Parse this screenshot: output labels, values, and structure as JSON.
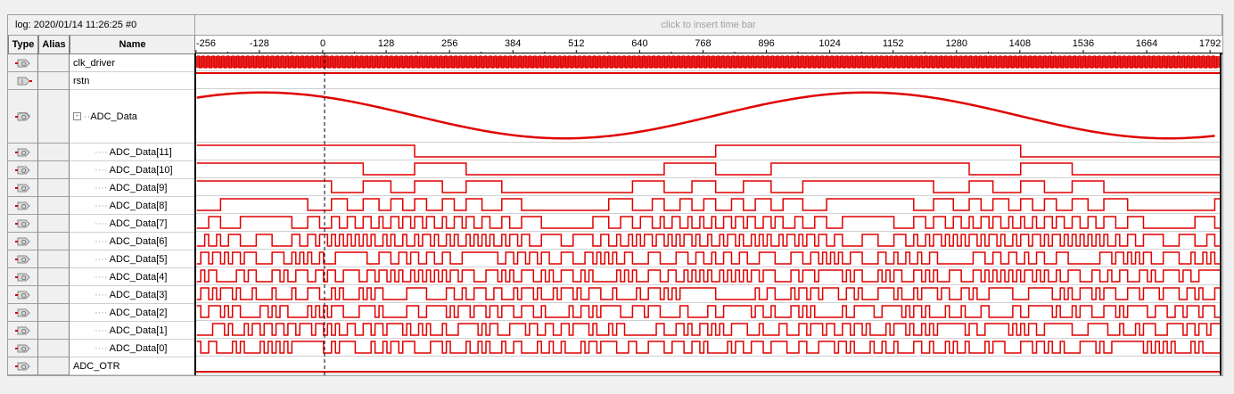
{
  "header": {
    "log": "log: 2020/01/14 11:26:25  #0",
    "time_bar_hint": "click to insert time bar"
  },
  "columns": {
    "type": "Type",
    "alias": "Alias",
    "name": "Name"
  },
  "ruler": {
    "ticks": [
      "-256",
      "-128",
      "0",
      "128",
      "256",
      "384",
      "512",
      "640",
      "768",
      "896",
      "1024",
      "1152",
      "1280",
      "1408",
      "1536",
      "1664",
      "1792"
    ],
    "cursor_time": 0
  },
  "colors": {
    "wave": "#e00000",
    "grid": "#d0d0d0"
  },
  "signals": [
    {
      "name": "clk_driver",
      "type": "output",
      "kind": "clock"
    },
    {
      "name": "rstn",
      "type": "input",
      "kind": "high"
    },
    {
      "name": "ADC_Data",
      "type": "output-bus",
      "kind": "analog",
      "expanded": true
    },
    {
      "name": "ADC_Data[11]",
      "type": "output",
      "kind": "bit",
      "bit": 11
    },
    {
      "name": "ADC_Data[10]",
      "type": "output",
      "kind": "bit",
      "bit": 10
    },
    {
      "name": "ADC_Data[9]",
      "type": "output",
      "kind": "bit",
      "bit": 9
    },
    {
      "name": "ADC_Data[8]",
      "type": "output",
      "kind": "bit",
      "bit": 8
    },
    {
      "name": "ADC_Data[7]",
      "type": "output",
      "kind": "bit",
      "bit": 7
    },
    {
      "name": "ADC_Data[6]",
      "type": "output",
      "kind": "bit",
      "bit": 6
    },
    {
      "name": "ADC_Data[5]",
      "type": "output",
      "kind": "bit",
      "bit": 5
    },
    {
      "name": "ADC_Data[4]",
      "type": "output",
      "kind": "bit",
      "bit": 4
    },
    {
      "name": "ADC_Data[3]",
      "type": "output",
      "kind": "bit",
      "bit": 3
    },
    {
      "name": "ADC_Data[2]",
      "type": "output",
      "kind": "bit",
      "bit": 2
    },
    {
      "name": "ADC_Data[1]",
      "type": "output",
      "kind": "bit",
      "bit": 1
    },
    {
      "name": "ADC_Data[0]",
      "type": "output",
      "kind": "bit",
      "bit": 0
    },
    {
      "name": "ADC_OTR",
      "type": "output",
      "kind": "low"
    }
  ]
}
